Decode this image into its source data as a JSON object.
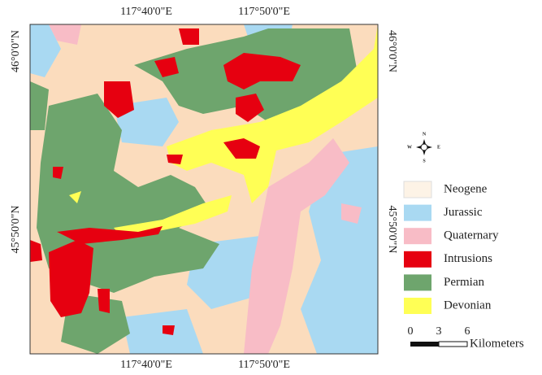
{
  "map": {
    "top_labels": [
      "117°40'0\"E",
      "117°50'0\"E"
    ],
    "bottom_labels": [
      "117°40'0\"E",
      "117°50'0\"E"
    ],
    "left_labels": [
      "46°0'0\"N",
      "45°50'0\"N"
    ],
    "right_labels": [
      "46°0'0\"N",
      "45°50'0\"N"
    ],
    "legend": [
      {
        "name": "Neogene",
        "color": "#fdf3e6"
      },
      {
        "name": "Jurassic",
        "color": "#a9d9f2"
      },
      {
        "name": "Quaternary",
        "color": "#f8bcc6"
      },
      {
        "name": "Intrusions",
        "color": "#e60010"
      },
      {
        "name": "Permian",
        "color": "#6ea56d"
      },
      {
        "name": "Devonian",
        "color": "#ffff55"
      }
    ],
    "compass": {
      "n": "N",
      "s": "S",
      "e": "E",
      "w": "W"
    },
    "scale_bar": {
      "ticks": [
        0,
        3,
        6
      ],
      "unit": "Kilometers"
    }
  }
}
